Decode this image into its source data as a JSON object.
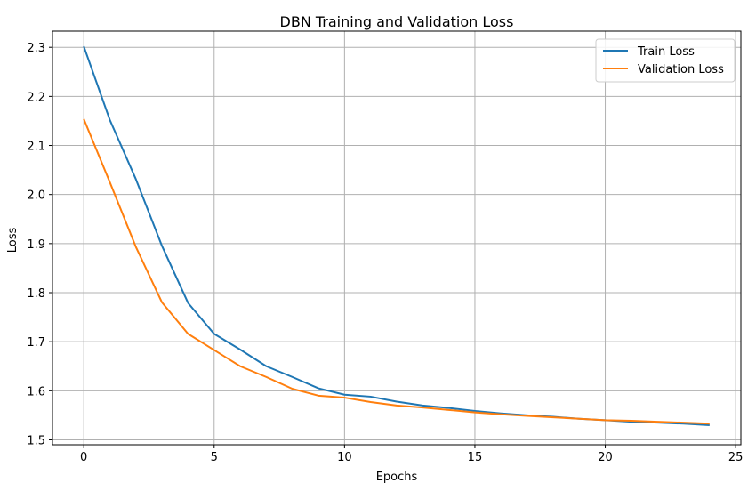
{
  "chart_data": {
    "type": "line",
    "title": "DBN Training and Validation Loss",
    "xlabel": "Epochs",
    "ylabel": "Loss",
    "xlim": [
      -1.2,
      25.2
    ],
    "ylim": [
      1.49,
      2.333
    ],
    "xticks": [
      0,
      5,
      10,
      15,
      20,
      25
    ],
    "yticks": [
      1.5,
      1.6,
      1.7,
      1.8,
      1.9,
      2.0,
      2.1,
      2.2,
      2.3
    ],
    "ytick_labels": [
      "1.5",
      "1.6",
      "1.7",
      "1.8",
      "1.9",
      "2.0",
      "2.1",
      "2.2",
      "2.3"
    ],
    "grid": true,
    "legend_position": "top-right",
    "x": [
      0,
      1,
      2,
      3,
      4,
      5,
      6,
      7,
      8,
      9,
      10,
      11,
      12,
      13,
      14,
      15,
      16,
      17,
      18,
      19,
      20,
      21,
      22,
      23,
      24
    ],
    "series": [
      {
        "name": "Train Loss",
        "color": "#1f77b4",
        "values": [
          2.302,
          2.152,
          2.031,
          1.895,
          1.779,
          1.716,
          1.684,
          1.65,
          1.628,
          1.605,
          1.592,
          1.588,
          1.578,
          1.57,
          1.565,
          1.559,
          1.554,
          1.55,
          1.547,
          1.543,
          1.54,
          1.537,
          1.535,
          1.533,
          1.53
        ]
      },
      {
        "name": "Validation Loss",
        "color": "#ff7f0e",
        "values": [
          2.154,
          2.025,
          1.893,
          1.78,
          1.716,
          1.683,
          1.65,
          1.628,
          1.604,
          1.59,
          1.586,
          1.577,
          1.57,
          1.566,
          1.561,
          1.556,
          1.552,
          1.549,
          1.546,
          1.543,
          1.54,
          1.539,
          1.537,
          1.535,
          1.533
        ]
      }
    ]
  }
}
